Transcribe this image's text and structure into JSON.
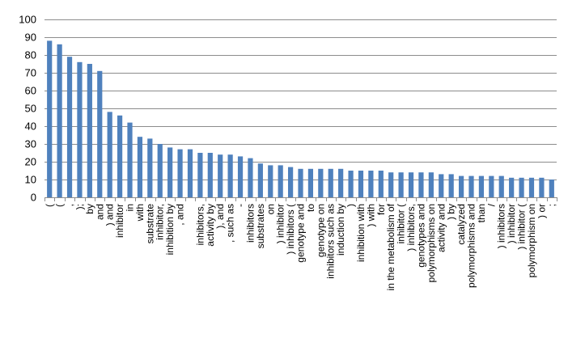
{
  "chart_data": {
    "type": "bar",
    "title": "",
    "xlabel": "",
    "ylabel": "",
    "ylim": [
      0,
      100
    ],
    "yticks": [
      0,
      10,
      20,
      30,
      40,
      50,
      60,
      70,
      80,
      90,
      100
    ],
    "grid": true,
    "legend": "none",
    "bar_color": "#4f81bd",
    "grid_color": "#8c8c8c",
    "categories": [
      "(",
      "(",
      ",",
      ");",
      "by",
      "and",
      ") and",
      "inhibitor",
      "in",
      "with",
      "substrate",
      "inhibitor,",
      "inhibition by",
      ", and",
      "",
      "inhibitors,",
      "activity by",
      "), and",
      ", such as",
      "-",
      "inhibitors",
      "substrates",
      "on",
      ") inhibitor",
      ") inhibitors (",
      "genotype and",
      "to",
      "genotype on",
      "inhibitors such as",
      "induction by",
      ")",
      "inhibition with",
      ") with",
      "for",
      "in the metabolism of",
      "inhibitor (",
      ") inhibitors,",
      "genotypes and",
      "polymorphisms on",
      "activity and",
      ") by",
      "catalyzed",
      "polymorphisms and",
      "than",
      "/",
      ") inhibitors",
      ") inhibitor",
      ") inhibitor (",
      "polymorphism on",
      ") or",
      ";"
    ],
    "values": [
      88,
      86,
      79,
      76,
      75,
      71,
      48,
      46,
      42,
      34,
      33,
      30,
      28,
      27,
      27,
      25,
      25,
      24,
      24,
      23,
      22,
      19,
      18,
      18,
      17,
      16,
      16,
      16,
      16,
      16,
      15,
      15,
      15,
      15,
      14,
      14,
      14,
      14,
      14,
      13,
      13,
      12,
      12,
      12,
      12,
      12,
      11,
      11,
      11,
      11,
      10
    ]
  }
}
